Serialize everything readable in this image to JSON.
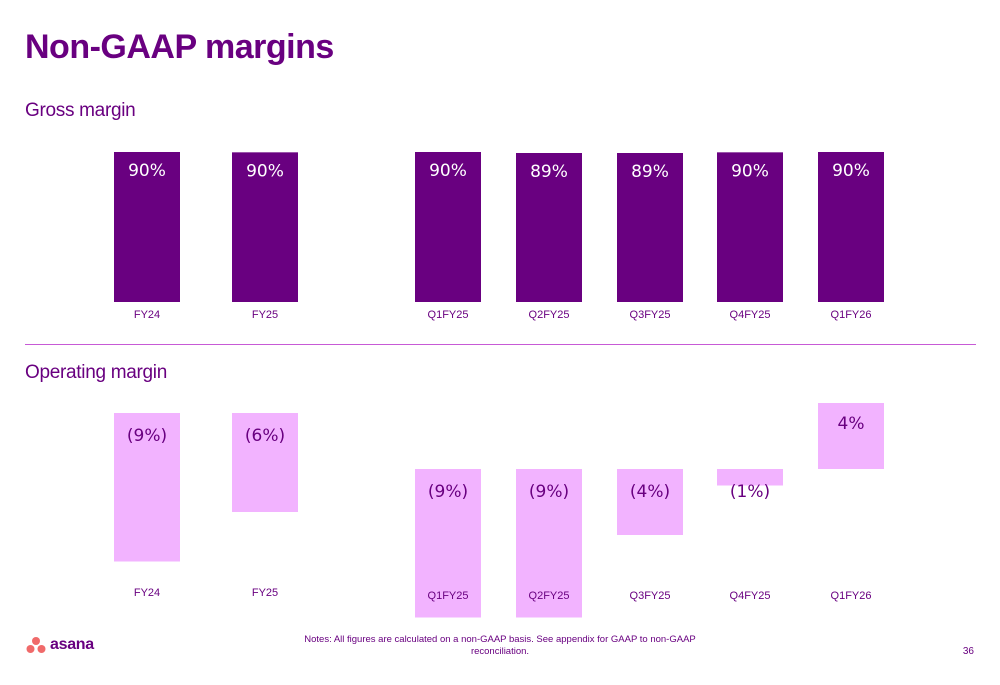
{
  "title": "Non-GAAP margins",
  "colors": {
    "gross_bar": "#690080",
    "operating_bar": "#f2b3ff",
    "gross_label": "#ffffff",
    "operating_label": "#690080",
    "text": "#690080"
  },
  "chart_data": [
    {
      "type": "bar",
      "title": "Gross margin",
      "categories": [
        "FY24",
        "FY25",
        "Q1FY25",
        "Q2FY25",
        "Q3FY25",
        "Q4FY25",
        "Q1FY26"
      ],
      "values": [
        90,
        89.8,
        90,
        89.4,
        89.4,
        89.8,
        90
      ],
      "data_labels": [
        "90%",
        "90%",
        "90%",
        "89%",
        "89%",
        "90%",
        "90%"
      ],
      "ylabel": "",
      "unit": "%",
      "ylim": [
        0,
        90
      ],
      "grid": false
    },
    {
      "type": "bar",
      "title": "Operating margin",
      "categories": [
        "FY24",
        "FY25",
        "Q1FY25",
        "Q2FY25",
        "Q3FY25",
        "Q4FY25",
        "Q1FY26"
      ],
      "values": [
        -9,
        -6,
        -9,
        -9,
        -4,
        -1,
        4
      ],
      "data_labels": [
        "(9%)",
        "(6%)",
        "(9%)",
        "(9%)",
        "(4%)",
        "(1%)",
        "4%"
      ],
      "ylabel": "",
      "unit": "%",
      "grid": false
    }
  ],
  "footer": {
    "logo_text": "asana",
    "logo_icon": "asana-three-dots-icon",
    "notes": "Notes: All figures are calculated on a non-GAAP basis. See appendix for GAAP to non-GAAP reconciliation.",
    "page_number": "36"
  }
}
